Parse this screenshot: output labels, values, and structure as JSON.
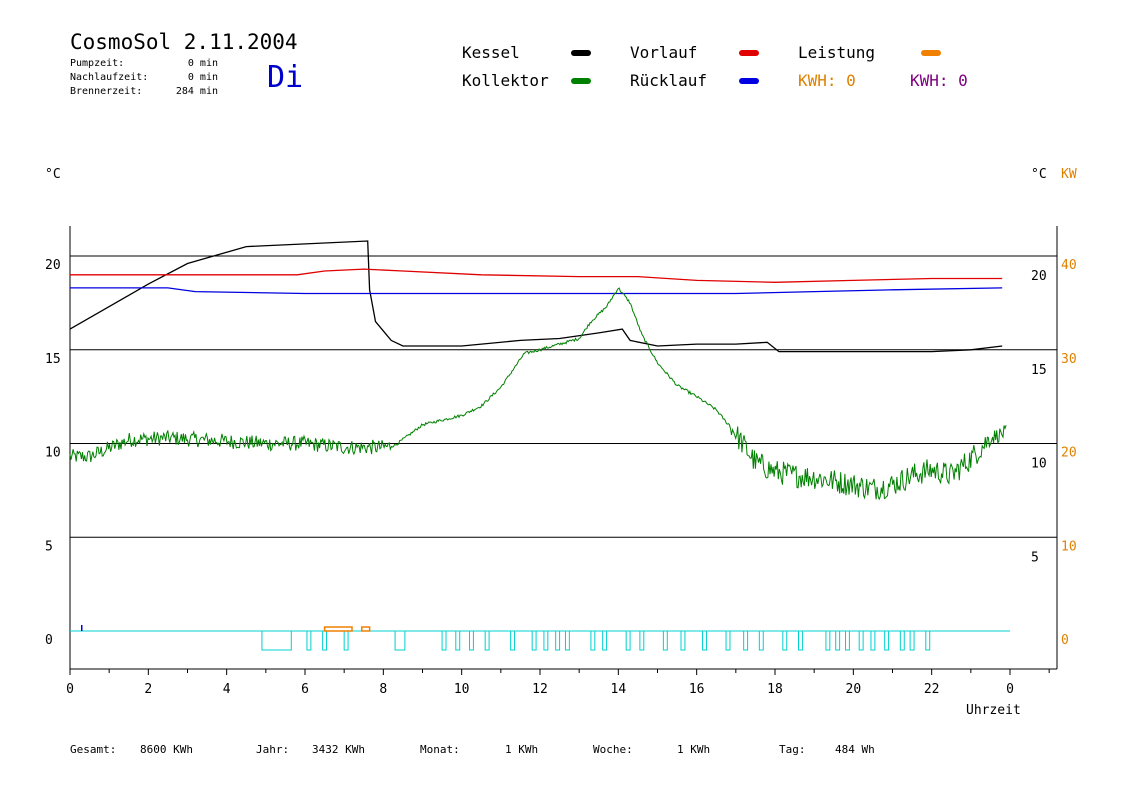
{
  "header": {
    "title": "CosmoSol 2.11.2004",
    "day": "Di",
    "pumpzeit_label": "Pumpzeit:",
    "pumpzeit_value": "0 min",
    "nachlauf_label": "Nachlaufzeit:",
    "nachlauf_value": "0 min",
    "brenner_label": "Brennerzeit:",
    "brenner_value": "284 min"
  },
  "legend": {
    "items": [
      {
        "label": "Kessel",
        "color": "#000000"
      },
      {
        "label": "Vorlauf",
        "color": "#e00000"
      },
      {
        "label": "Leistung",
        "color": "#f08000"
      },
      {
        "label": "Kollektor",
        "color": "#008000"
      },
      {
        "label": "Rücklauf",
        "color": "#0000e0"
      }
    ],
    "kwh1_label": "KWH: 0",
    "kwh1_color": "#e08000",
    "kwh2_label": "KWH: 0",
    "kwh2_color": "#800080"
  },
  "footer": {
    "gesamt_label": "Gesamt:",
    "gesamt_value": "8600 KWh",
    "jahr_label": "Jahr:",
    "jahr_value": "3432 KWh",
    "monat_label": "Monat:",
    "monat_value": "1 KWh",
    "woche_label": "Woche:",
    "woche_value": "1 KWh",
    "tag_label": "Tag:",
    "tag_value": "484 Wh"
  },
  "chart_data": {
    "type": "line",
    "xlabel": "Uhrzeit",
    "xlim": [
      0,
      24
    ],
    "x_ticks": [
      "0",
      "2",
      "4",
      "6",
      "8",
      "10",
      "12",
      "14",
      "16",
      "18",
      "20",
      "22",
      "0"
    ],
    "y_left_label": "°C",
    "y_left_lim": [
      -2.5,
      22
    ],
    "y_left_ticks": [
      "0",
      "5",
      "10",
      "15",
      "20"
    ],
    "y_right_label": "°C",
    "y_right_ticks": [
      "5",
      "10",
      "15",
      "20"
    ],
    "y_right2_label": "KW",
    "y_right2_ticks": [
      "0",
      "10",
      "20",
      "30",
      "40"
    ],
    "y_right2_color": "#e08000",
    "grid": true,
    "series": [
      {
        "name": "Kessel",
        "color": "#000000",
        "points": [
          [
            0,
            16.1
          ],
          [
            1,
            17.3
          ],
          [
            2,
            18.5
          ],
          [
            3,
            19.6
          ],
          [
            4.5,
            20.5
          ],
          [
            7.6,
            20.8
          ],
          [
            7.65,
            18.2
          ],
          [
            7.8,
            16.5
          ],
          [
            8.2,
            15.5
          ],
          [
            8.5,
            15.2
          ],
          [
            10,
            15.2
          ],
          [
            11.5,
            15.5
          ],
          [
            12.5,
            15.6
          ],
          [
            13.5,
            15.9
          ],
          [
            14.1,
            16.1
          ],
          [
            14.3,
            15.5
          ],
          [
            15,
            15.2
          ],
          [
            16,
            15.3
          ],
          [
            17,
            15.3
          ],
          [
            17.8,
            15.4
          ],
          [
            18.1,
            14.9
          ],
          [
            19.5,
            14.9
          ],
          [
            21,
            14.9
          ],
          [
            22,
            14.9
          ],
          [
            23,
            15.0
          ],
          [
            23.8,
            15.2
          ]
        ]
      },
      {
        "name": "Vorlauf",
        "color": "#e00000",
        "points": [
          [
            0,
            19.0
          ],
          [
            5.8,
            19.0
          ],
          [
            6.5,
            19.2
          ],
          [
            7.5,
            19.3
          ],
          [
            8.5,
            19.2
          ],
          [
            10.5,
            19.0
          ],
          [
            13,
            18.9
          ],
          [
            14.5,
            18.9
          ],
          [
            16,
            18.7
          ],
          [
            18,
            18.6
          ],
          [
            20,
            18.7
          ],
          [
            22,
            18.8
          ],
          [
            23.8,
            18.8
          ]
        ]
      },
      {
        "name": "Rücklauf",
        "color": "#0000e0",
        "points": [
          [
            0,
            18.3
          ],
          [
            2.5,
            18.3
          ],
          [
            3.2,
            18.1
          ],
          [
            6,
            18.0
          ],
          [
            9,
            18.0
          ],
          [
            12,
            18.0
          ],
          [
            14.5,
            18.0
          ],
          [
            17,
            18.0
          ],
          [
            19,
            18.1
          ],
          [
            21,
            18.2
          ],
          [
            23.8,
            18.3
          ]
        ]
      },
      {
        "name": "Kollektor",
        "color": "#008000",
        "noise": 0.8,
        "points": [
          [
            0,
            9.3
          ],
          [
            0.5,
            9.3
          ],
          [
            1.5,
            10.2
          ],
          [
            2.5,
            10.3
          ],
          [
            5,
            10.0
          ],
          [
            6,
            10.0
          ],
          [
            7,
            9.8
          ],
          [
            8,
            9.8
          ],
          [
            8.3,
            9.9
          ],
          [
            9,
            11.0
          ],
          [
            10,
            11.5
          ],
          [
            10.5,
            12.0
          ],
          [
            11,
            13.0
          ],
          [
            11.6,
            14.8
          ],
          [
            12,
            15.0
          ],
          [
            12.5,
            15.3
          ],
          [
            13,
            15.6
          ],
          [
            13.3,
            16.5
          ],
          [
            13.7,
            17.3
          ],
          [
            14,
            18.3
          ],
          [
            14.3,
            17.5
          ],
          [
            14.6,
            15.8
          ],
          [
            15,
            14.3
          ],
          [
            15.5,
            13.1
          ],
          [
            16,
            12.5
          ],
          [
            16.5,
            11.8
          ],
          [
            17,
            10.5
          ],
          [
            17.5,
            9.0
          ],
          [
            18,
            8.5
          ],
          [
            18.5,
            8.3
          ],
          [
            19,
            8.2
          ],
          [
            19.5,
            8.0
          ],
          [
            20,
            7.8
          ],
          [
            20.5,
            7.6
          ],
          [
            21,
            7.8
          ],
          [
            21.5,
            8.3
          ],
          [
            22,
            8.6
          ],
          [
            22.5,
            8.3
          ],
          [
            23,
            9.2
          ],
          [
            23.5,
            10.3
          ],
          [
            23.9,
            10.6
          ]
        ]
      }
    ],
    "zero_line_color": "#00d0d0",
    "pump_on_intervals": [
      [
        4.9,
        5.65
      ],
      [
        6.05,
        6.15
      ],
      [
        6.45,
        6.55
      ],
      [
        7.0,
        7.1
      ],
      [
        8.3,
        8.55
      ],
      [
        9.5,
        9.6
      ],
      [
        9.85,
        9.95
      ],
      [
        10.2,
        10.3
      ],
      [
        10.6,
        10.7
      ],
      [
        11.25,
        11.35
      ],
      [
        11.8,
        11.9
      ],
      [
        12.1,
        12.2
      ],
      [
        12.4,
        12.5
      ],
      [
        12.65,
        12.75
      ],
      [
        13.3,
        13.4
      ],
      [
        13.6,
        13.7
      ],
      [
        14.2,
        14.3
      ],
      [
        14.55,
        14.65
      ],
      [
        15.15,
        15.25
      ],
      [
        15.6,
        15.7
      ],
      [
        16.15,
        16.25
      ],
      [
        16.75,
        16.85
      ],
      [
        17.2,
        17.3
      ],
      [
        17.6,
        17.7
      ],
      [
        18.2,
        18.3
      ],
      [
        18.6,
        18.7
      ],
      [
        19.3,
        19.4
      ],
      [
        19.55,
        19.65
      ],
      [
        19.8,
        19.9
      ],
      [
        20.15,
        20.25
      ],
      [
        20.45,
        20.55
      ],
      [
        20.8,
        20.9
      ],
      [
        21.2,
        21.3
      ],
      [
        21.45,
        21.55
      ],
      [
        21.85,
        21.95
      ]
    ],
    "leistung_bumps": [
      [
        6.5,
        7.2
      ],
      [
        7.45,
        7.65
      ]
    ]
  }
}
